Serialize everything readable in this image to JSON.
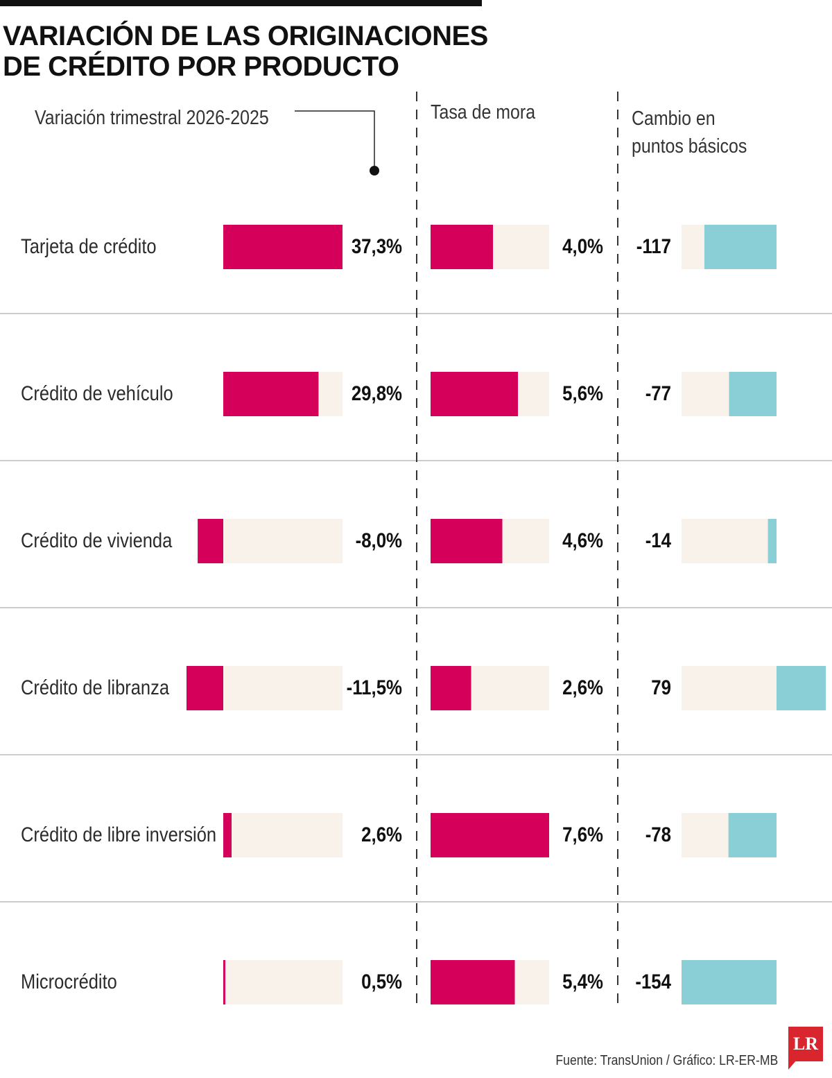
{
  "title": "VARIACIÓN DE LAS ORIGINACIONES DE CRÉDITO POR PRODUCTO",
  "source": "Fuente: TransUnion / Gráfico: LR-ER-MB",
  "logo": "LR",
  "colors": {
    "magenta": "#d4005a",
    "cream": "#f8f2ea",
    "teal": "#8acfd6",
    "separator": "#bbbbbb"
  },
  "chart_data": {
    "type": "bar",
    "categories": [
      "Tarjeta de crédito",
      "Crédito de vehículo",
      "Crédito de vivienda",
      "Crédito de libranza",
      "Crédito de libre inversión",
      "Microcrédito"
    ],
    "series": [
      {
        "name": "Variación trimestral 2026-2025",
        "values": [
          37.3,
          29.8,
          -8.0,
          -11.5,
          2.6,
          0.5
        ],
        "labels": [
          "37,3%",
          "29,8%",
          "-8,0%",
          "-11,5%",
          "2,6%",
          "0,5%"
        ],
        "color": "#d4005a"
      },
      {
        "name": "Tasa de mora",
        "values": [
          4.0,
          5.6,
          4.6,
          2.6,
          7.6,
          5.4
        ],
        "labels": [
          "4,0%",
          "5,6%",
          "4,6%",
          "2,6%",
          "7,6%",
          "5,4%"
        ],
        "color": "#d4005a"
      },
      {
        "name": "Cambio en puntos básicos",
        "values": [
          -117,
          -77,
          -14,
          79,
          -78,
          -154
        ],
        "labels": [
          "-117",
          "-77",
          "-14",
          "79",
          "-78",
          "-154"
        ],
        "color": "#8acfd6"
      }
    ]
  }
}
